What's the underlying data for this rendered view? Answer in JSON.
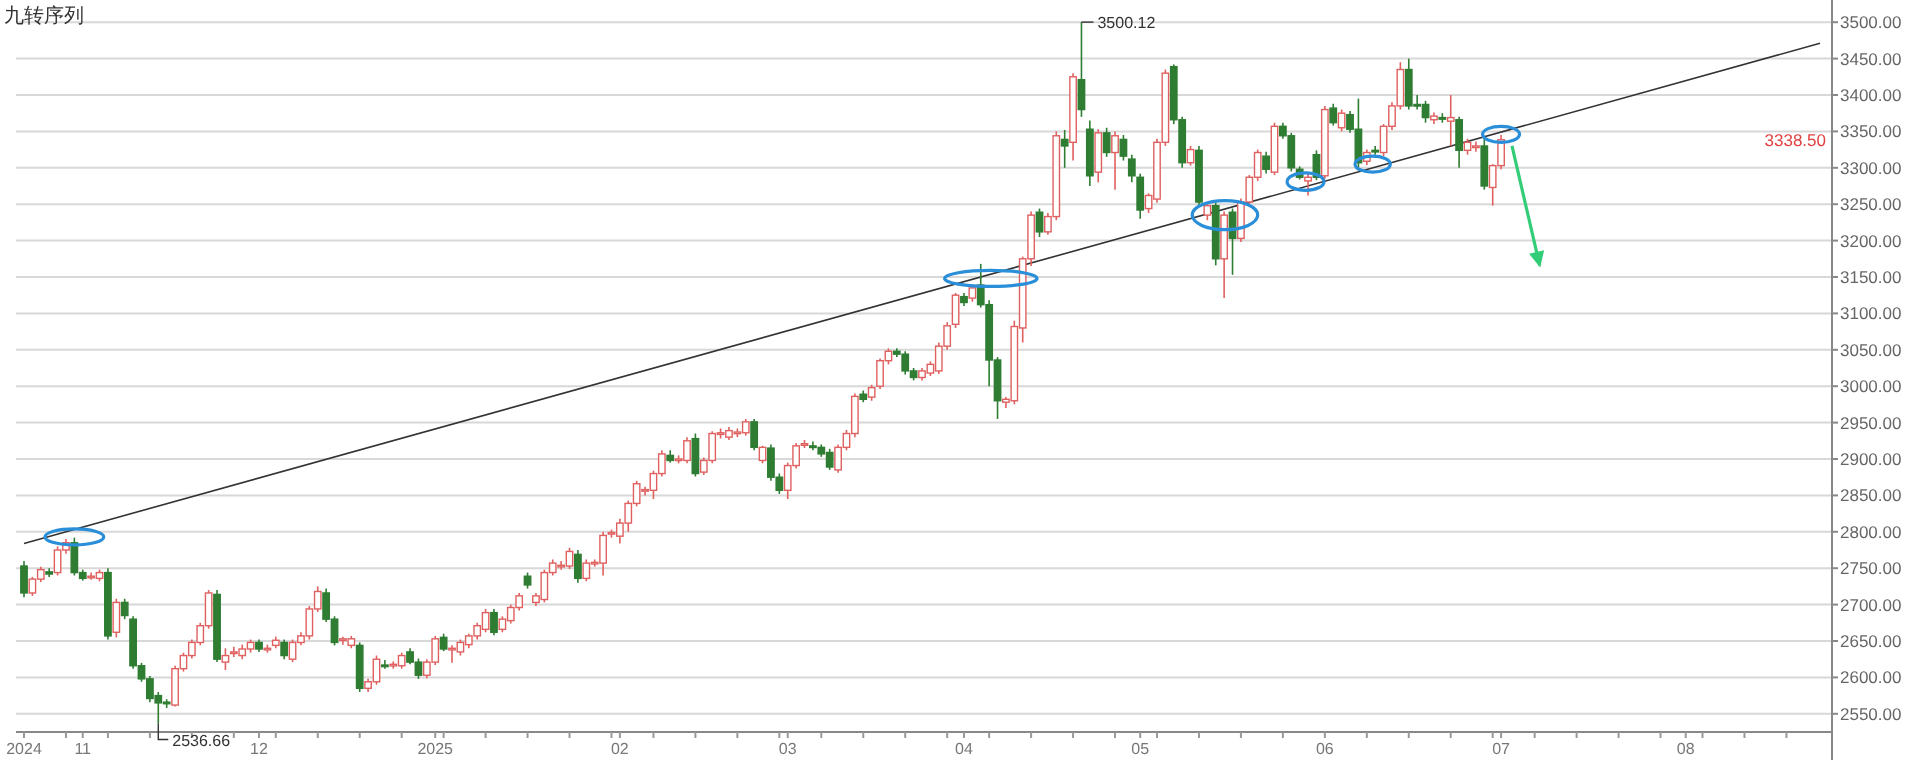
{
  "chart_data": {
    "type": "candlestick",
    "title": "九转序列",
    "categories": [
      "2024",
      null,
      null,
      null,
      null,
      null,
      null,
      "11",
      null,
      null,
      null,
      null,
      null,
      null,
      null,
      null,
      null,
      null,
      null,
      null,
      null,
      null,
      null,
      null,
      null,
      null,
      null,
      null,
      "12",
      null,
      null,
      null,
      null,
      null,
      null,
      null,
      null,
      null,
      null,
      null,
      null,
      null,
      null,
      null,
      null,
      null,
      null,
      null,
      null,
      "2025",
      null,
      null,
      null,
      null,
      null,
      null,
      null,
      null,
      null,
      null,
      null,
      null,
      null,
      null,
      null,
      null,
      null,
      null,
      null,
      null,
      null,
      "02",
      null,
      null,
      null,
      null,
      null,
      null,
      null,
      null,
      null,
      null,
      null,
      null,
      null,
      null,
      null,
      null,
      null,
      null,
      null,
      "03",
      null,
      null,
      null,
      null,
      null,
      null,
      null,
      null,
      null,
      null,
      null,
      null,
      null,
      null,
      null,
      null,
      null,
      null,
      null,
      null,
      "04",
      null,
      null,
      null,
      null,
      null,
      null,
      null,
      null,
      null,
      null,
      null,
      null,
      null,
      null,
      null,
      null,
      null,
      null,
      null,
      null,
      "05",
      null,
      null,
      null,
      null,
      null,
      null,
      null,
      null,
      null,
      null,
      null,
      null,
      null,
      null,
      null,
      null,
      null,
      null,
      null,
      null,
      null,
      "06",
      null,
      null,
      null,
      null,
      null,
      null,
      null,
      null,
      null,
      null,
      null,
      null,
      null,
      null,
      null,
      null,
      null,
      null,
      null,
      null,
      "07",
      null,
      null,
      null,
      null,
      null,
      null,
      null,
      null,
      null,
      null,
      null,
      null,
      null,
      null,
      null,
      null,
      null,
      null,
      null,
      null,
      null,
      "08",
      null,
      null,
      null,
      null,
      null,
      null,
      null,
      null,
      null,
      null,
      null,
      null,
      null,
      null,
      null,
      null
    ],
    "ohlc": [
      [
        2753,
        2760,
        2710,
        2716
      ],
      [
        2716,
        2738,
        2712,
        2735
      ],
      [
        2735,
        2752,
        2731,
        2748
      ],
      [
        2745,
        2750,
        2738,
        2742
      ],
      [
        2744,
        2780,
        2740,
        2775
      ],
      [
        2775,
        2790,
        2770,
        2785
      ],
      [
        2785,
        2792,
        2740,
        2744
      ],
      [
        2744,
        2748,
        2733,
        2736
      ],
      [
        2739,
        2744,
        2734,
        2739
      ],
      [
        2736,
        2748,
        2732,
        2744
      ],
      [
        2744,
        2750,
        2652,
        2657
      ],
      [
        2662,
        2708,
        2655,
        2703
      ],
      [
        2703,
        2708,
        2680,
        2685
      ],
      [
        2680,
        2684,
        2612,
        2616
      ],
      [
        2616,
        2620,
        2594,
        2598
      ],
      [
        2598,
        2602,
        2566,
        2571
      ],
      [
        2575,
        2580,
        2536.66,
        2565
      ],
      [
        2566,
        2570,
        2558,
        2564
      ],
      [
        2562,
        2616,
        2560,
        2612
      ],
      [
        2612,
        2634,
        2608,
        2630
      ],
      [
        2630,
        2652,
        2626,
        2648
      ],
      [
        2648,
        2675,
        2644,
        2671
      ],
      [
        2671,
        2720,
        2667,
        2716
      ],
      [
        2714,
        2720,
        2621,
        2625
      ],
      [
        2621,
        2640,
        2610,
        2630
      ],
      [
        2633,
        2642,
        2628,
        2635
      ],
      [
        2630,
        2645,
        2625,
        2639
      ],
      [
        2639,
        2652,
        2634,
        2648
      ],
      [
        2648,
        2652,
        2635,
        2639
      ],
      [
        2639,
        2645,
        2634,
        2640
      ],
      [
        2644,
        2656,
        2640,
        2651
      ],
      [
        2648,
        2652,
        2625,
        2630
      ],
      [
        2625,
        2652,
        2621,
        2648
      ],
      [
        2648,
        2662,
        2644,
        2657
      ],
      [
        2657,
        2698,
        2652,
        2694
      ],
      [
        2694,
        2725,
        2690,
        2718
      ],
      [
        2716,
        2722,
        2676,
        2680
      ],
      [
        2680,
        2684,
        2644,
        2648
      ],
      [
        2651,
        2656,
        2645,
        2653
      ],
      [
        2644,
        2657,
        2640,
        2653
      ],
      [
        2644,
        2648,
        2580,
        2585
      ],
      [
        2585,
        2598,
        2580,
        2594
      ],
      [
        2594,
        2630,
        2590,
        2625
      ],
      [
        2617,
        2624,
        2612,
        2616
      ],
      [
        2616,
        2622,
        2612,
        2618
      ],
      [
        2616,
        2634,
        2612,
        2630
      ],
      [
        2635,
        2640,
        2618,
        2621
      ],
      [
        2621,
        2626,
        2598,
        2603
      ],
      [
        2603,
        2625,
        2599,
        2621
      ],
      [
        2621,
        2657,
        2617,
        2653
      ],
      [
        2655,
        2660,
        2636,
        2639
      ],
      [
        2639,
        2644,
        2620,
        2640
      ],
      [
        2635,
        2652,
        2630,
        2648
      ],
      [
        2645,
        2660,
        2640,
        2657
      ],
      [
        2657,
        2675,
        2652,
        2671
      ],
      [
        2666,
        2694,
        2662,
        2689
      ],
      [
        2689,
        2694,
        2658,
        2662
      ],
      [
        2666,
        2684,
        2662,
        2680
      ],
      [
        2678,
        2700,
        2674,
        2696
      ],
      [
        2696,
        2716,
        2692,
        2712
      ],
      [
        2739,
        2744,
        2722,
        2727
      ],
      [
        2703,
        2716,
        2698,
        2712
      ],
      [
        2707,
        2748,
        2703,
        2744
      ],
      [
        2744,
        2762,
        2740,
        2757
      ],
      [
        2753,
        2760,
        2748,
        2754
      ],
      [
        2753,
        2778,
        2749,
        2773
      ],
      [
        2769,
        2775,
        2730,
        2736
      ],
      [
        2736,
        2762,
        2732,
        2757
      ],
      [
        2757,
        2762,
        2752,
        2758
      ],
      [
        2757,
        2800,
        2740,
        2795
      ],
      [
        2798,
        2803,
        2792,
        2799
      ],
      [
        2794,
        2818,
        2784,
        2812
      ],
      [
        2812,
        2843,
        2800,
        2839
      ],
      [
        2839,
        2870,
        2835,
        2866
      ],
      [
        2857,
        2862,
        2850,
        2858
      ],
      [
        2857,
        2884,
        2845,
        2880
      ],
      [
        2880,
        2912,
        2876,
        2907
      ],
      [
        2905,
        2912,
        2895,
        2898
      ],
      [
        2898,
        2905,
        2894,
        2900
      ],
      [
        2898,
        2930,
        2894,
        2925
      ],
      [
        2928,
        2935,
        2876,
        2880
      ],
      [
        2882,
        2902,
        2878,
        2898
      ],
      [
        2898,
        2938,
        2894,
        2935
      ],
      [
        2935,
        2942,
        2928,
        2936
      ],
      [
        2930,
        2944,
        2926,
        2939
      ],
      [
        2936,
        2942,
        2930,
        2937
      ],
      [
        2936,
        2955,
        2932,
        2951
      ],
      [
        2951,
        2955,
        2912,
        2916
      ],
      [
        2898,
        2918,
        2894,
        2916
      ],
      [
        2915,
        2920,
        2870,
        2875
      ],
      [
        2875,
        2880,
        2852,
        2857
      ],
      [
        2857,
        2895,
        2845,
        2891
      ],
      [
        2891,
        2922,
        2887,
        2918
      ],
      [
        2920,
        2926,
        2915,
        2921
      ],
      [
        2918,
        2924,
        2912,
        2916
      ],
      [
        2916,
        2920,
        2903,
        2907
      ],
      [
        2909,
        2914,
        2885,
        2889
      ],
      [
        2885,
        2920,
        2881,
        2916
      ],
      [
        2916,
        2940,
        2912,
        2935
      ],
      [
        2935,
        2990,
        2930,
        2986
      ],
      [
        2989,
        2994,
        2978,
        2982
      ],
      [
        2985,
        3002,
        2980,
        2998
      ],
      [
        3000,
        3038,
        2996,
        3035
      ],
      [
        3035,
        3052,
        3030,
        3048
      ],
      [
        3048,
        3052,
        3040,
        3044
      ],
      [
        3044,
        3048,
        3016,
        3021
      ],
      [
        3021,
        3025,
        3008,
        3012
      ],
      [
        3012,
        3025,
        3008,
        3021
      ],
      [
        3018,
        3034,
        3014,
        3030
      ],
      [
        3021,
        3060,
        3017,
        3055
      ],
      [
        3055,
        3088,
        3050,
        3083
      ],
      [
        3085,
        3128,
        3080,
        3125
      ],
      [
        3123,
        3128,
        3110,
        3115
      ],
      [
        3121,
        3140,
        3116,
        3135
      ],
      [
        3139,
        3168,
        3108,
        3112
      ],
      [
        3112,
        3118,
        3000,
        3036
      ],
      [
        3036,
        3040,
        2955,
        2980
      ],
      [
        2978,
        2985,
        2970,
        2982
      ],
      [
        2980,
        3090,
        2975,
        3082
      ],
      [
        3080,
        3178,
        3060,
        3175
      ],
      [
        3175,
        3240,
        3165,
        3235
      ],
      [
        3239,
        3244,
        3205,
        3212
      ],
      [
        3212,
        3238,
        3208,
        3233
      ],
      [
        3233,
        3350,
        3228,
        3344
      ],
      [
        3339,
        3352,
        3300,
        3330
      ],
      [
        3335,
        3430,
        3310,
        3425
      ],
      [
        3421,
        3500.12,
        3370,
        3380
      ],
      [
        3353,
        3365,
        3275,
        3289
      ],
      [
        3294,
        3353,
        3280,
        3348
      ],
      [
        3348,
        3355,
        3315,
        3321
      ],
      [
        3321,
        3350,
        3270,
        3344
      ],
      [
        3339,
        3345,
        3310,
        3316
      ],
      [
        3312,
        3318,
        3280,
        3289
      ],
      [
        3287,
        3292,
        3230,
        3242
      ],
      [
        3244,
        3265,
        3238,
        3262
      ],
      [
        3257,
        3340,
        3252,
        3335
      ],
      [
        3335,
        3435,
        3330,
        3430
      ],
      [
        3439,
        3442,
        3360,
        3366
      ],
      [
        3366,
        3370,
        3300,
        3307
      ],
      [
        3307,
        3330,
        3303,
        3325
      ],
      [
        3324,
        3330,
        3248,
        3253
      ],
      [
        3235,
        3252,
        3228,
        3248
      ],
      [
        3248,
        3252,
        3166,
        3175
      ],
      [
        3175,
        3240,
        3121,
        3235
      ],
      [
        3239,
        3244,
        3153,
        3203
      ],
      [
        3203,
        3258,
        3198,
        3253
      ],
      [
        3253,
        3290,
        3248,
        3287
      ],
      [
        3287,
        3325,
        3282,
        3321
      ],
      [
        3316,
        3322,
        3292,
        3298
      ],
      [
        3294,
        3362,
        3290,
        3357
      ],
      [
        3357,
        3362,
        3340,
        3344
      ],
      [
        3344,
        3348,
        3295,
        3300
      ],
      [
        3298,
        3302,
        3284,
        3287
      ],
      [
        3282,
        3292,
        3262,
        3287
      ],
      [
        3318,
        3324,
        3283,
        3287
      ],
      [
        3289,
        3385,
        3285,
        3380
      ],
      [
        3382,
        3388,
        3358,
        3362
      ],
      [
        3355,
        3380,
        3350,
        3375
      ],
      [
        3373,
        3378,
        3348,
        3353
      ],
      [
        3353,
        3395,
        3300,
        3307
      ],
      [
        3309,
        3325,
        3304,
        3321
      ],
      [
        3324,
        3330,
        3318,
        3323
      ],
      [
        3321,
        3360,
        3316,
        3357
      ],
      [
        3357,
        3390,
        3352,
        3385
      ],
      [
        3385,
        3445,
        3380,
        3435
      ],
      [
        3435,
        3450,
        3380,
        3385
      ],
      [
        3387,
        3400,
        3380,
        3386
      ],
      [
        3387,
        3392,
        3362,
        3369
      ],
      [
        3366,
        3376,
        3360,
        3371
      ],
      [
        3369,
        3375,
        3362,
        3368
      ],
      [
        3364,
        3400,
        3330,
        3369
      ],
      [
        3366,
        3370,
        3300,
        3324
      ],
      [
        3324,
        3340,
        3318,
        3335
      ],
      [
        3330,
        3336,
        3322,
        3330
      ],
      [
        3330,
        3342,
        3270,
        3275
      ],
      [
        3273,
        3305,
        3248,
        3303
      ],
      [
        3303,
        3345,
        3298,
        3338.5
      ],
      null,
      null,
      null,
      null,
      null,
      null,
      null,
      null,
      null,
      null,
      null,
      null,
      null,
      null,
      null,
      null,
      null,
      null,
      null,
      null,
      null,
      null,
      null,
      null,
      null,
      null,
      null,
      null,
      null,
      null,
      null,
      null,
      null,
      null,
      null,
      null,
      null,
      null
    ],
    "series": [
      {
        "type": "line",
        "color": "#333333",
        "values": [
          2784,
          null,
          null,
          null,
          null,
          null,
          null,
          null,
          null,
          null,
          null,
          null,
          null,
          null,
          null,
          null,
          null,
          null,
          null,
          null,
          null,
          null,
          null,
          null,
          null,
          null,
          null,
          null,
          null,
          null,
          null,
          null,
          null,
          null,
          null,
          null,
          null,
          null,
          null,
          null,
          null,
          null,
          null,
          null,
          null,
          null,
          null,
          null,
          null,
          null,
          null,
          null,
          null,
          null,
          null,
          null,
          null,
          null,
          null,
          null,
          null,
          null,
          null,
          null,
          null,
          null,
          null,
          null,
          null,
          null,
          null,
          null,
          null,
          null,
          null,
          null,
          null,
          null,
          null,
          null,
          null,
          null,
          null,
          null,
          null,
          null,
          null,
          null,
          null,
          null,
          null,
          null,
          null,
          null,
          null,
          null,
          null,
          null,
          null,
          null,
          null,
          null,
          null,
          null,
          null,
          null,
          null,
          null,
          null,
          null,
          null,
          null,
          null,
          null,
          null,
          null,
          null,
          null,
          null,
          null,
          null,
          null,
          null,
          null,
          null,
          null,
          null,
          null,
          null,
          null,
          null,
          null,
          null,
          null,
          null,
          null,
          null,
          null,
          null,
          null,
          null,
          null,
          null,
          null,
          null,
          null,
          null,
          null,
          null,
          null,
          null,
          null,
          null,
          null,
          null,
          null,
          null,
          null,
          null,
          null,
          null,
          null,
          null,
          null,
          null,
          null,
          null,
          null,
          null,
          null,
          null,
          null,
          null,
          null,
          null,
          null,
          null,
          null,
          null,
          null,
          null,
          null,
          null,
          null,
          null,
          null,
          null,
          null,
          null,
          null,
          null,
          null,
          null,
          null,
          null,
          null,
          null,
          null,
          null,
          null,
          null,
          null,
          null,
          null,
          null,
          null,
          null,
          null,
          null,
          null,
          null,
          null,
          null,
          null,
          3471
        ]
      }
    ],
    "ylim": [
      2525,
      3525
    ],
    "yticks": [
      {
        "value": 2550,
        "label": "2550.00"
      },
      {
        "value": 2600,
        "label": "2600.00"
      },
      {
        "value": 2650,
        "label": "2650.00"
      },
      {
        "value": 2700,
        "label": "2700.00"
      },
      {
        "value": 2750,
        "label": "2750.00"
      },
      {
        "value": 2800,
        "label": "2800.00"
      },
      {
        "value": 2850,
        "label": "2850.00"
      },
      {
        "value": 2900,
        "label": "2900.00"
      },
      {
        "value": 2950,
        "label": "2950.00"
      },
      {
        "value": 3000,
        "label": "3000.00"
      },
      {
        "value": 3050,
        "label": "3050.00"
      },
      {
        "value": 3100,
        "label": "3100.00"
      },
      {
        "value": 3150,
        "label": "3150.00"
      },
      {
        "value": 3200,
        "label": "3200.00"
      },
      {
        "value": 3250,
        "label": "3250.00"
      },
      {
        "value": 3300,
        "label": "3300.00"
      },
      {
        "value": 3350,
        "label": "3350.00"
      },
      {
        "value": 3400,
        "label": "3400.00"
      },
      {
        "value": 3450,
        "label": "3450.00"
      },
      {
        "value": 3500,
        "label": "3500.00"
      }
    ],
    "grid": "y",
    "annotations": [
      "3500.12",
      "2536.66",
      "3338.50"
    ]
  }
}
